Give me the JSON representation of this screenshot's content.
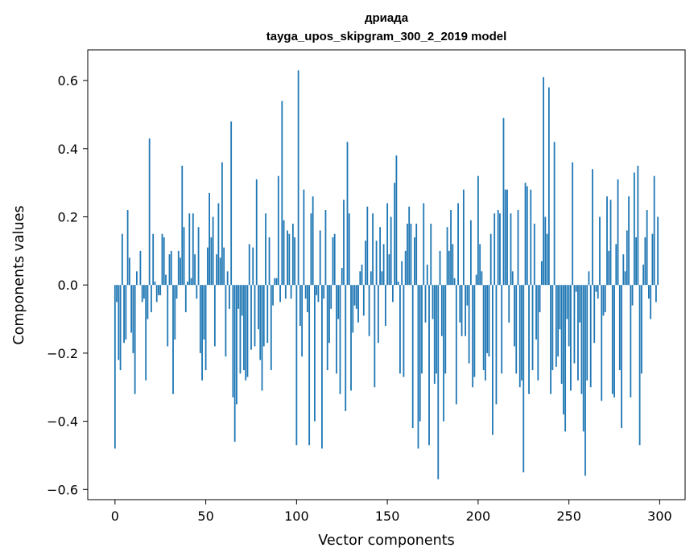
{
  "chart_data": {
    "type": "bar",
    "title": [
      "дриада",
      "tayga_upos_skipgram_300_2_2019 model"
    ],
    "xlabel": "Vector components",
    "ylabel": "Components values",
    "xlim": [
      -15,
      314
    ],
    "ylim": [
      -0.63,
      0.69
    ],
    "xticks": [
      0,
      50,
      100,
      150,
      200,
      250,
      300
    ],
    "yticks": [
      -0.6,
      -0.4,
      -0.2,
      0.0,
      0.2,
      0.4,
      0.6
    ],
    "ytick_labels": [
      "−0.6",
      "−0.4",
      "−0.2",
      "0.0",
      "0.2",
      "0.4",
      "0.6"
    ],
    "bar_color": "#1f77b4",
    "values": [
      -0.48,
      -0.05,
      -0.22,
      -0.25,
      0.15,
      -0.17,
      -0.16,
      0.22,
      0.08,
      -0.14,
      -0.2,
      -0.32,
      0.04,
      0.0,
      0.1,
      -0.05,
      -0.04,
      -0.28,
      -0.1,
      0.43,
      -0.08,
      0.15,
      0.01,
      -0.05,
      -0.03,
      -0.03,
      0.15,
      0.14,
      0.03,
      -0.18,
      0.09,
      0.1,
      -0.32,
      -0.16,
      -0.04,
      0.1,
      0.08,
      0.35,
      0.17,
      -0.08,
      0.01,
      0.21,
      0.02,
      0.21,
      0.09,
      -0.04,
      0.17,
      -0.2,
      -0.28,
      -0.16,
      -0.25,
      0.11,
      0.27,
      0.14,
      0.2,
      -0.18,
      0.09,
      0.24,
      0.08,
      0.36,
      0.11,
      -0.21,
      0.04,
      -0.07,
      0.48,
      -0.33,
      -0.46,
      -0.35,
      -0.07,
      -0.26,
      -0.09,
      -0.25,
      -0.28,
      -0.27,
      0.12,
      -0.19,
      0.11,
      -0.18,
      0.31,
      -0.13,
      -0.22,
      -0.31,
      -0.18,
      0.21,
      -0.17,
      0.14,
      -0.25,
      -0.06,
      0.02,
      0.02,
      0.32,
      -0.05,
      0.54,
      0.19,
      -0.04,
      0.16,
      0.15,
      -0.04,
      0.18,
      0.14,
      -0.47,
      0.63,
      -0.12,
      -0.21,
      0.28,
      -0.04,
      -0.08,
      -0.47,
      0.21,
      0.26,
      -0.4,
      -0.03,
      -0.05,
      0.16,
      -0.48,
      -0.04,
      0.22,
      -0.25,
      -0.17,
      -0.07,
      0.14,
      0.15,
      -0.26,
      -0.1,
      -0.32,
      0.05,
      0.25,
      -0.37,
      0.42,
      0.21,
      -0.31,
      -0.14,
      -0.06,
      -0.07,
      -0.11,
      0.04,
      0.06,
      -0.09,
      0.13,
      0.23,
      -0.15,
      0.04,
      0.21,
      -0.3,
      0.13,
      -0.17,
      0.17,
      0.04,
      0.12,
      -0.12,
      0.24,
      0.09,
      0.2,
      -0.05,
      0.3,
      0.38,
      0.01,
      -0.26,
      0.07,
      -0.27,
      0.1,
      0.18,
      0.23,
      0.18,
      -0.42,
      0.14,
      0.18,
      -0.48,
      -0.4,
      -0.26,
      0.24,
      -0.11,
      0.06,
      -0.47,
      0.18,
      -0.1,
      -0.29,
      -0.26,
      -0.57,
      0.1,
      -0.15,
      -0.4,
      -0.26,
      0.17,
      0.1,
      0.22,
      0.12,
      0.02,
      -0.35,
      0.24,
      -0.11,
      -0.15,
      0.28,
      -0.15,
      -0.06,
      -0.23,
      0.19,
      -0.3,
      -0.27,
      0.03,
      0.32,
      0.12,
      0.04,
      -0.25,
      -0.28,
      -0.2,
      -0.21,
      0.15,
      -0.44,
      0.21,
      -0.35,
      0.22,
      0.21,
      -0.26,
      0.49,
      0.28,
      0.28,
      -0.11,
      0.21,
      0.04,
      -0.18,
      -0.26,
      0.22,
      -0.3,
      -0.28,
      -0.55,
      0.3,
      0.29,
      -0.32,
      0.28,
      -0.25,
      0.18,
      -0.16,
      -0.28,
      -0.08,
      0.07,
      0.61,
      0.2,
      0.15,
      0.58,
      -0.32,
      -0.25,
      0.42,
      -0.24,
      -0.21,
      -0.13,
      -0.29,
      -0.38,
      -0.43,
      -0.1,
      -0.18,
      -0.31,
      0.36,
      -0.23,
      -0.02,
      -0.28,
      -0.11,
      -0.32,
      -0.43,
      -0.56,
      -0.28,
      0.04,
      -0.3,
      0.34,
      -0.17,
      -0.02,
      -0.04,
      0.2,
      -0.34,
      -0.09,
      -0.08,
      0.26,
      0.1,
      0.25,
      -0.32,
      -0.33,
      0.12,
      0.31,
      -0.25,
      -0.42,
      0.09,
      0.04,
      0.16,
      0.26,
      -0.33,
      -0.06,
      0.33,
      0.14,
      0.35,
      -0.47,
      -0.26,
      0.06,
      0.14,
      0.22,
      -0.04,
      -0.1,
      0.15,
      0.32,
      -0.05,
      0.2
    ]
  }
}
